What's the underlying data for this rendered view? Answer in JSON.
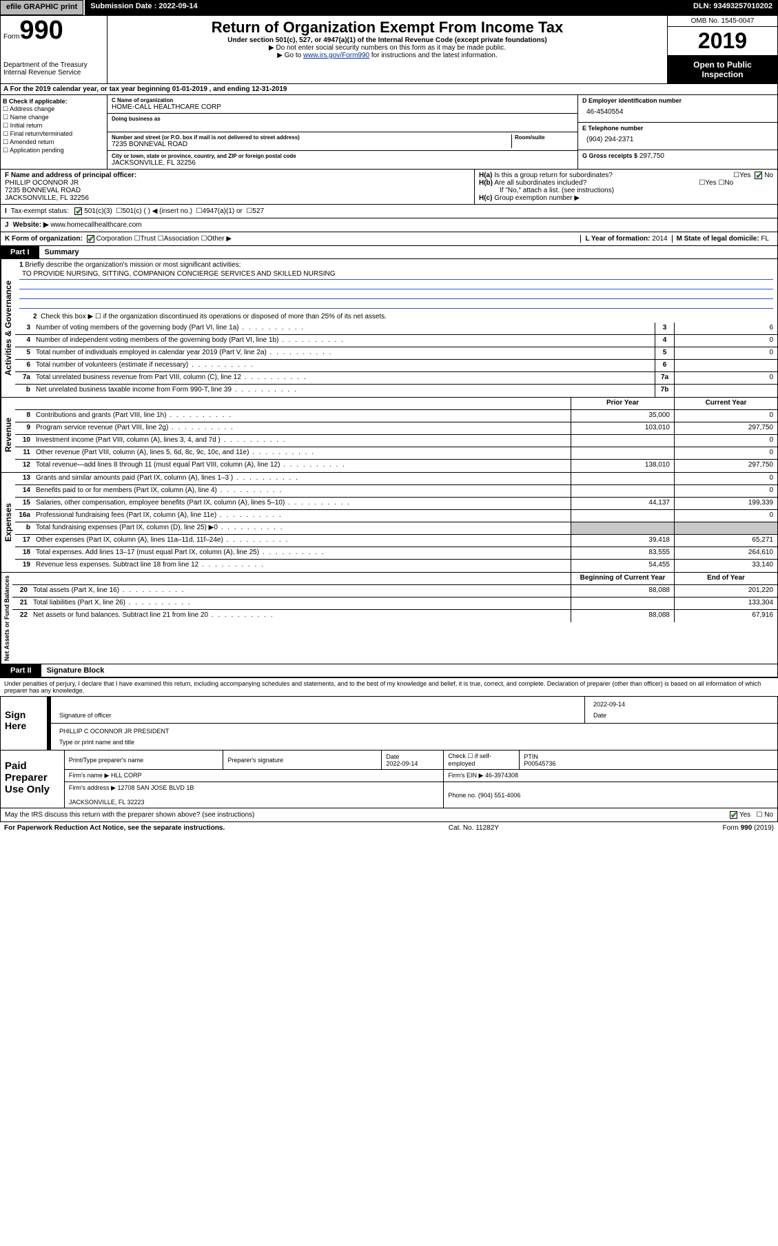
{
  "topbar": {
    "efile": "efile GRAPHIC print",
    "submission": "Submission Date : 2022-09-14",
    "dln": "DLN: 93493257010202"
  },
  "header": {
    "form_prefix": "Form",
    "form_no": "990",
    "dept": "Department of the Treasury\nInternal Revenue Service",
    "title": "Return of Organization Exempt From Income Tax",
    "sub1": "Under section 501(c), 527, or 4947(a)(1) of the Internal Revenue Code (except private foundations)",
    "sub2": "▶ Do not enter social security numbers on this form as it may be made public.",
    "sub3_pre": "▶ Go to ",
    "sub3_link": "www.irs.gov/Form990",
    "sub3_post": " for instructions and the latest information.",
    "omb": "OMB No. 1545-0047",
    "year": "2019",
    "inspect": "Open to Public Inspection"
  },
  "rowA": "For the 2019 calendar year, or tax year beginning 01-01-2019    , and ending 12-31-2019",
  "colB": {
    "title": "B Check if applicable:",
    "items": [
      "Address change",
      "Name change",
      "Initial return",
      "Final return/terminated",
      "Amended return",
      "Application pending"
    ]
  },
  "colC": {
    "name_label": "C Name of organization",
    "name": "HOME-CALL HEALTHCARE CORP",
    "dba": "Doing business as",
    "addr_label": "Number and street (or P.O. box if mail is not delivered to street address)",
    "room": "Room/suite",
    "addr": "7235 BONNEVAL ROAD",
    "city_label": "City or town, state or province, country, and ZIP or foreign postal code",
    "city": "JACKSONVILLE, FL  32256"
  },
  "colD": {
    "ein_label": "D Employer identification number",
    "ein": "46-4540554",
    "tel_label": "E Telephone number",
    "tel": "(904) 294-2371",
    "gross_label": "G Gross receipts $",
    "gross": "297,750"
  },
  "rowF": {
    "label": "F  Name and address of principal officer:",
    "name": "PHILLIP OCONNOR JR",
    "addr1": "7235 BONNEVAL ROAD",
    "addr2": "JACKSONVILLE, FL  32256"
  },
  "rowH": {
    "a": "Is this a group return for subordinates?",
    "b": "Are all subordinates included?",
    "b2": "If \"No,\" attach a list. (see instructions)",
    "c": "Group exemption number ▶"
  },
  "rowI": {
    "label": "Tax-exempt status:",
    "opts": [
      "501(c)(3)",
      "501(c) (   ) ◀ (insert no.)",
      "4947(a)(1) or",
      "527"
    ]
  },
  "rowJ": {
    "label": "Website: ▶",
    "val": "www.homecallhealthcare.com"
  },
  "rowK": {
    "label": "K Form of organization:",
    "opts": [
      "Corporation",
      "Trust",
      "Association",
      "Other ▶"
    ]
  },
  "rowL": {
    "label": "L Year of formation:",
    "val": "2014"
  },
  "rowM": {
    "label": "M State of legal domicile:",
    "val": "FL"
  },
  "part1": {
    "tag": "Part I",
    "title": "Summary"
  },
  "gov": {
    "label": "Activities & Governance",
    "l1": "Briefly describe the organization's mission or most significant activities:",
    "mission": "TO PROVIDE NURSING, SITTING, COMPANION CONCIERGE SERVICES AND SKILLED NURSING",
    "l2": "Check this box ▶ ☐  if the organization discontinued its operations or disposed of more than 25% of its net assets.",
    "rows": [
      {
        "n": "3",
        "d": "Number of voting members of the governing body (Part VI, line 1a)",
        "b": "3",
        "v": "6"
      },
      {
        "n": "4",
        "d": "Number of independent voting members of the governing body (Part VI, line 1b)",
        "b": "4",
        "v": "0"
      },
      {
        "n": "5",
        "d": "Total number of individuals employed in calendar year 2019 (Part V, line 2a)",
        "b": "5",
        "v": "0"
      },
      {
        "n": "6",
        "d": "Total number of volunteers (estimate if necessary)",
        "b": "6",
        "v": ""
      },
      {
        "n": "7a",
        "d": "Total unrelated business revenue from Part VIII, column (C), line 12",
        "b": "7a",
        "v": "0"
      },
      {
        "n": "b",
        "d": "Net unrelated business taxable income from Form 990-T, line 39",
        "b": "7b",
        "v": ""
      }
    ]
  },
  "rev": {
    "label": "Revenue",
    "hdr": {
      "c1": "Prior Year",
      "c2": "Current Year"
    },
    "rows": [
      {
        "n": "8",
        "d": "Contributions and grants (Part VIII, line 1h)",
        "v1": "35,000",
        "v2": "0"
      },
      {
        "n": "9",
        "d": "Program service revenue (Part VIII, line 2g)",
        "v1": "103,010",
        "v2": "297,750"
      },
      {
        "n": "10",
        "d": "Investment income (Part VIII, column (A), lines 3, 4, and 7d )",
        "v1": "",
        "v2": "0"
      },
      {
        "n": "11",
        "d": "Other revenue (Part VIII, column (A), lines 5, 6d, 8c, 9c, 10c, and 11e)",
        "v1": "",
        "v2": "0"
      },
      {
        "n": "12",
        "d": "Total revenue—add lines 8 through 11 (must equal Part VIII, column (A), line 12)",
        "v1": "138,010",
        "v2": "297,750"
      }
    ]
  },
  "exp": {
    "label": "Expenses",
    "rows": [
      {
        "n": "13",
        "d": "Grants and similar amounts paid (Part IX, column (A), lines 1–3 )",
        "v1": "",
        "v2": "0"
      },
      {
        "n": "14",
        "d": "Benefits paid to or for members (Part IX, column (A), line 4)",
        "v1": "",
        "v2": "0"
      },
      {
        "n": "15",
        "d": "Salaries, other compensation, employee benefits (Part IX, column (A), lines 5–10)",
        "v1": "44,137",
        "v2": "199,339"
      },
      {
        "n": "16a",
        "d": "Professional fundraising fees (Part IX, column (A), line 11e)",
        "v1": "",
        "v2": "0"
      },
      {
        "n": "b",
        "d": "Total fundraising expenses (Part IX, column (D), line 25) ▶0",
        "v1": "gray",
        "v2": "gray"
      },
      {
        "n": "17",
        "d": "Other expenses (Part IX, column (A), lines 11a–11d, 11f–24e)",
        "v1": "39,418",
        "v2": "65,271"
      },
      {
        "n": "18",
        "d": "Total expenses. Add lines 13–17 (must equal Part IX, column (A), line 25)",
        "v1": "83,555",
        "v2": "264,610"
      },
      {
        "n": "19",
        "d": "Revenue less expenses. Subtract line 18 from line 12",
        "v1": "54,455",
        "v2": "33,140"
      }
    ]
  },
  "net": {
    "label": "Net Assets or Fund Balances",
    "hdr": {
      "c1": "Beginning of Current Year",
      "c2": "End of Year"
    },
    "rows": [
      {
        "n": "20",
        "d": "Total assets (Part X, line 16)",
        "v1": "88,088",
        "v2": "201,220"
      },
      {
        "n": "21",
        "d": "Total liabilities (Part X, line 26)",
        "v1": "",
        "v2": "133,304"
      },
      {
        "n": "22",
        "d": "Net assets or fund balances. Subtract line 21 from line 20",
        "v1": "88,088",
        "v2": "67,916"
      }
    ]
  },
  "part2": {
    "tag": "Part II",
    "title": "Signature Block"
  },
  "penalties": "Under penalties of perjury, I declare that I have examined this return, including accompanying schedules and statements, and to the best of my knowledge and belief, it is true, correct, and complete. Declaration of preparer (other than officer) is based on all information of which preparer has any knowledge.",
  "sign": {
    "label": "Sign Here",
    "sig": "Signature of officer",
    "date": "2022-09-14",
    "datelabel": "Date",
    "name": "PHILLIP C OCONNOR JR  PRESIDENT",
    "namelabel": "Type or print name and title"
  },
  "prep": {
    "label": "Paid Preparer Use Only",
    "r1": {
      "c1": "Print/Type preparer's name",
      "c2": "Preparer's signature",
      "c3": "Date",
      "c3v": "2022-09-14",
      "c4": "Check ☐  if self-employed",
      "c5": "PTIN",
      "c5v": "P00545736"
    },
    "r2": {
      "c1": "Firm's name    ▶",
      "c1v": "HLL CORP",
      "c2": "Firm's EIN ▶",
      "c2v": "46-3974308"
    },
    "r3": {
      "c1": "Firm's address ▶",
      "c1v": "12708 SAN JOSE BLVD 1B",
      "c2": "Phone no.",
      "c2v": "(904) 551-4006"
    },
    "r3b": "JACKSONVILLE, FL  32223"
  },
  "discuss": "May the IRS discuss this return with the preparer shown above? (see instructions)",
  "footer": {
    "l": "For Paperwork Reduction Act Notice, see the separate instructions.",
    "c": "Cat. No. 11282Y",
    "r": "Form 990 (2019)"
  }
}
